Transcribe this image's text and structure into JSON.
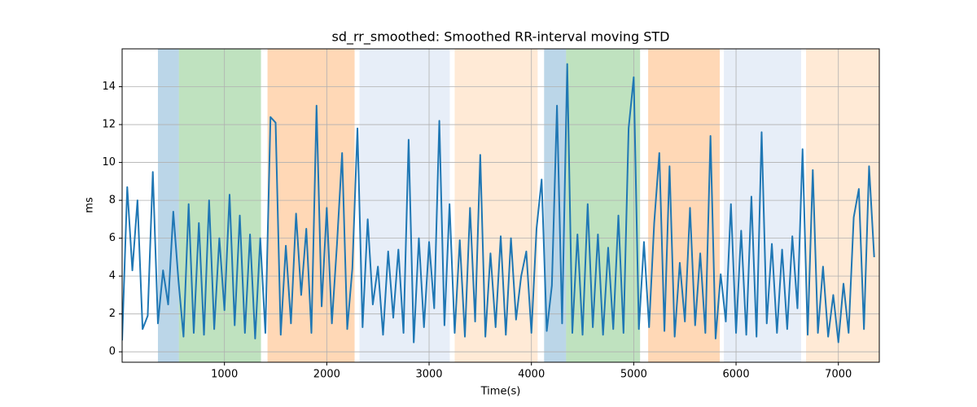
{
  "chart_data": {
    "type": "line",
    "title": "sd_rr_smoothed: Smoothed RR-interval moving STD",
    "x_label": "Time(s)",
    "y_label": "ms",
    "xlim": [
      0,
      7400
    ],
    "ylim": [
      -0.55,
      16
    ],
    "xticks": [
      1000,
      2000,
      3000,
      4000,
      5000,
      6000,
      7000
    ],
    "yticks": [
      0,
      2,
      4,
      6,
      8,
      10,
      12,
      14
    ],
    "grid": true,
    "spans": [
      {
        "start": 350,
        "end": 555,
        "color": "#1f77b4",
        "alpha": 0.3
      },
      {
        "start": 555,
        "end": 1357,
        "color": "#2ca02c",
        "alpha": 0.3
      },
      {
        "start": 1421,
        "end": 2272,
        "color": "#ff7f0e",
        "alpha": 0.3
      },
      {
        "start": 2320,
        "end": 3202,
        "color": "#aec7e8",
        "alpha": 0.3
      },
      {
        "start": 3250,
        "end": 4061,
        "color": "#ffbb78",
        "alpha": 0.3
      },
      {
        "start": 4124,
        "end": 4339,
        "color": "#1f77b4",
        "alpha": 0.3
      },
      {
        "start": 4339,
        "end": 5062,
        "color": "#2ca02c",
        "alpha": 0.3
      },
      {
        "start": 5141,
        "end": 5841,
        "color": "#ff7f0e",
        "alpha": 0.3
      },
      {
        "start": 5881,
        "end": 6636,
        "color": "#aec7e8",
        "alpha": 0.3
      },
      {
        "start": 6684,
        "end": 7400,
        "color": "#ffbb78",
        "alpha": 0.3
      }
    ],
    "x": [
      0,
      50,
      100,
      150,
      200,
      250,
      300,
      350,
      400,
      450,
      500,
      550,
      600,
      650,
      700,
      750,
      800,
      850,
      900,
      950,
      1000,
      1050,
      1100,
      1150,
      1200,
      1250,
      1300,
      1350,
      1400,
      1450,
      1500,
      1550,
      1600,
      1650,
      1700,
      1750,
      1800,
      1850,
      1900,
      1950,
      2000,
      2050,
      2100,
      2150,
      2200,
      2250,
      2300,
      2350,
      2400,
      2450,
      2500,
      2550,
      2600,
      2650,
      2700,
      2750,
      2800,
      2850,
      2900,
      2950,
      3000,
      3050,
      3100,
      3150,
      3200,
      3250,
      3300,
      3350,
      3400,
      3450,
      3500,
      3550,
      3600,
      3650,
      3700,
      3750,
      3800,
      3850,
      3900,
      3950,
      4000,
      4050,
      4100,
      4150,
      4200,
      4250,
      4300,
      4350,
      4400,
      4450,
      4500,
      4550,
      4600,
      4650,
      4700,
      4750,
      4800,
      4850,
      4900,
      4950,
      5000,
      5050,
      5100,
      5150,
      5200,
      5250,
      5300,
      5350,
      5400,
      5450,
      5500,
      5550,
      5600,
      5650,
      5700,
      5750,
      5800,
      5850,
      5900,
      5950,
      6000,
      6050,
      6100,
      6150,
      6200,
      6250,
      6300,
      6350,
      6400,
      6450,
      6500,
      6550,
      6600,
      6650,
      6700,
      6750,
      6800,
      6850,
      6900,
      6950,
      7000,
      7050,
      7100,
      7150,
      7200,
      7250,
      7300,
      7350
    ],
    "series": [
      {
        "color": "#1f77b4",
        "values": [
          0.6,
          8.7,
          4.3,
          8.0,
          1.2,
          1.9,
          9.5,
          1.5,
          4.3,
          2.5,
          7.4,
          3.8,
          0.8,
          7.8,
          1.0,
          6.8,
          0.9,
          8.0,
          1.2,
          6.0,
          2.2,
          8.3,
          1.4,
          7.2,
          1.0,
          6.2,
          0.7,
          6.0,
          1.0,
          12.4,
          12.1,
          0.9,
          5.6,
          1.5,
          7.3,
          3.0,
          6.5,
          1.0,
          13.0,
          2.4,
          7.6,
          1.5,
          5.7,
          10.5,
          1.2,
          4.4,
          11.8,
          1.3,
          7.0,
          2.5,
          4.5,
          0.9,
          5.3,
          1.8,
          5.4,
          1.0,
          11.2,
          0.5,
          6.0,
          1.3,
          5.8,
          2.3,
          12.2,
          1.4,
          7.8,
          1.0,
          5.9,
          0.8,
          7.6,
          1.6,
          10.4,
          0.8,
          5.2,
          1.3,
          6.1,
          0.9,
          6.0,
          1.7,
          4.0,
          5.3,
          1.0,
          6.5,
          9.1,
          1.1,
          3.5,
          13.0,
          1.5,
          15.2,
          1.0,
          6.2,
          0.9,
          7.8,
          1.3,
          6.2,
          0.9,
          5.5,
          1.2,
          7.2,
          1.0,
          11.8,
          14.5,
          1.2,
          5.8,
          1.3,
          6.8,
          10.5,
          1.1,
          9.8,
          0.8,
          4.7,
          1.6,
          7.6,
          1.4,
          5.2,
          1.0,
          11.4,
          0.7,
          4.1,
          1.6,
          7.8,
          1.0,
          6.4,
          0.9,
          8.2,
          0.8,
          11.6,
          1.5,
          5.7,
          1.0,
          5.4,
          1.2,
          6.1,
          2.3,
          10.7,
          0.9,
          9.6,
          1.0,
          4.5,
          0.8,
          3.0,
          0.5,
          3.6,
          1.0,
          7.1,
          8.6,
          1.2,
          9.8,
          5.0
        ]
      }
    ]
  }
}
